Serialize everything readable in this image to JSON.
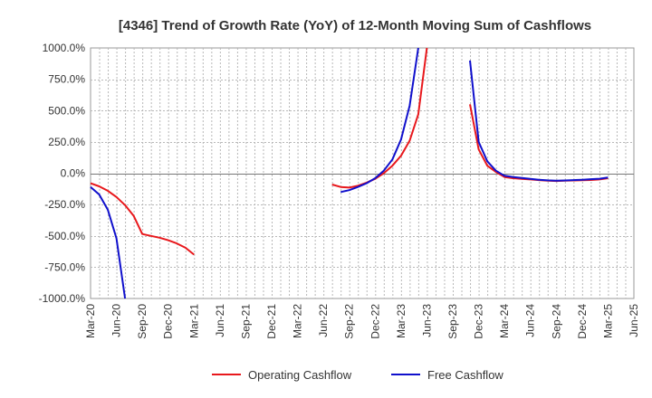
{
  "chart_data": {
    "type": "line",
    "title": "[4346]  Trend of Growth Rate (YoY) of 12-Month Moving Sum of Cashflows",
    "xlabel": "",
    "ylabel": "",
    "ylim": [
      -1000,
      1000
    ],
    "y_ticks": [
      "1000.0%",
      "750.0%",
      "500.0%",
      "250.0%",
      "0.0%",
      "-250.0%",
      "-500.0%",
      "-750.0%",
      "-1000.0%"
    ],
    "x_ticks": [
      "Mar-20",
      "Jun-20",
      "Sep-20",
      "Dec-20",
      "Mar-21",
      "Jun-21",
      "Sep-21",
      "Dec-21",
      "Mar-22",
      "Jun-22",
      "Sep-22",
      "Dec-22",
      "Mar-23",
      "Jun-23",
      "Sep-23",
      "Dec-23",
      "Mar-24",
      "Jun-24",
      "Sep-24",
      "Dec-24",
      "Mar-25",
      "Jun-25"
    ],
    "x_start": "2020-03",
    "grid": true,
    "legend_position": "bottom",
    "series": [
      {
        "name": "Operating Cashflow",
        "color": "#e8181c",
        "points": [
          [
            "2020-03",
            -80
          ],
          [
            "2020-04",
            -105
          ],
          [
            "2020-05",
            -140
          ],
          [
            "2020-06",
            -190
          ],
          [
            "2020-07",
            -255
          ],
          [
            "2020-08",
            -340
          ],
          [
            "2020-09",
            -485
          ],
          [
            "2020-10",
            -500
          ],
          [
            "2020-11",
            -515
          ],
          [
            "2020-12",
            -535
          ],
          [
            "2021-01",
            -560
          ],
          [
            "2021-02",
            -595
          ],
          [
            "2021-03",
            -650
          ],
          [
            "2022-07",
            -90
          ],
          [
            "2022-08",
            -110
          ],
          [
            "2022-09",
            -115
          ],
          [
            "2022-10",
            -100
          ],
          [
            "2022-11",
            -75
          ],
          [
            "2022-12",
            -45
          ],
          [
            "2023-01",
            0
          ],
          [
            "2023-02",
            60
          ],
          [
            "2023-03",
            140
          ],
          [
            "2023-04",
            260
          ],
          [
            "2023-05",
            470
          ],
          [
            "2023-06",
            1000
          ],
          [
            "2023-11",
            550
          ],
          [
            "2023-12",
            190
          ],
          [
            "2024-01",
            60
          ],
          [
            "2024-02",
            10
          ],
          [
            "2024-03",
            -30
          ],
          [
            "2024-04",
            -40
          ],
          [
            "2024-05",
            -45
          ],
          [
            "2024-06",
            -50
          ],
          [
            "2024-07",
            -55
          ],
          [
            "2024-08",
            -60
          ],
          [
            "2024-09",
            -62
          ],
          [
            "2024-10",
            -60
          ],
          [
            "2024-11",
            -58
          ],
          [
            "2024-12",
            -56
          ],
          [
            "2025-01",
            -54
          ],
          [
            "2025-02",
            -50
          ],
          [
            "2025-03",
            -40
          ]
        ]
      },
      {
        "name": "Free Cashflow",
        "color": "#1010cc",
        "points": [
          [
            "2020-03",
            -110
          ],
          [
            "2020-04",
            -170
          ],
          [
            "2020-05",
            -290
          ],
          [
            "2020-06",
            -520
          ],
          [
            "2020-07",
            -1000
          ],
          [
            "2022-08",
            -150
          ],
          [
            "2022-09",
            -135
          ],
          [
            "2022-10",
            -110
          ],
          [
            "2022-11",
            -80
          ],
          [
            "2022-12",
            -40
          ],
          [
            "2023-01",
            20
          ],
          [
            "2023-02",
            110
          ],
          [
            "2023-03",
            270
          ],
          [
            "2023-04",
            540
          ],
          [
            "2023-05",
            1000
          ],
          [
            "2023-11",
            900
          ],
          [
            "2023-12",
            250
          ],
          [
            "2024-01",
            95
          ],
          [
            "2024-02",
            20
          ],
          [
            "2024-03",
            -20
          ],
          [
            "2024-04",
            -30
          ],
          [
            "2024-05",
            -38
          ],
          [
            "2024-06",
            -45
          ],
          [
            "2024-07",
            -52
          ],
          [
            "2024-08",
            -57
          ],
          [
            "2024-09",
            -60
          ],
          [
            "2024-10",
            -58
          ],
          [
            "2024-11",
            -55
          ],
          [
            "2024-12",
            -52
          ],
          [
            "2025-01",
            -48
          ],
          [
            "2025-02",
            -44
          ],
          [
            "2025-03",
            -35
          ]
        ]
      }
    ]
  }
}
